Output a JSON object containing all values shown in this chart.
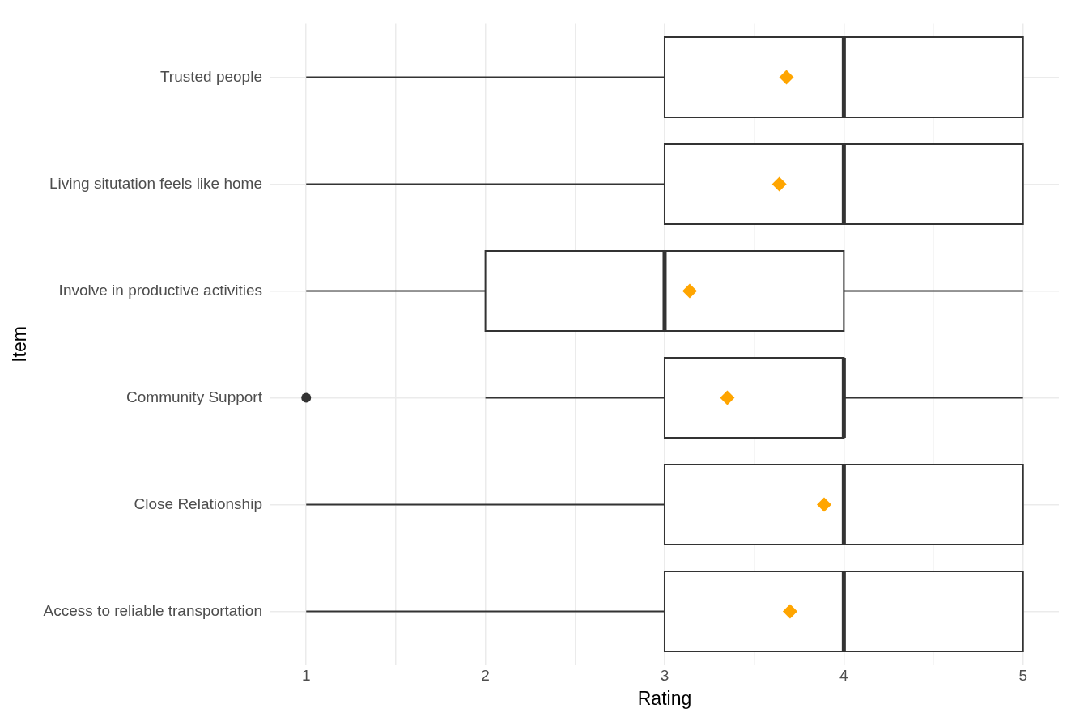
{
  "chart_data": {
    "type": "box",
    "orientation": "horizontal",
    "xlabel": "Rating",
    "ylabel": "Item",
    "categories": [
      "Trusted people",
      "Living situtation feels like home",
      "Involve in productive activities",
      "Community Support",
      "Close Relationship",
      "Access to reliable transportation"
    ],
    "xlim": [
      0.8,
      5.2
    ],
    "xticks": [
      1,
      {
        "value": 1.5,
        "label": null
      },
      2,
      {
        "value": 2.5,
        "label": null
      },
      3,
      {
        "value": 3.5,
        "label": null
      },
      4,
      {
        "value": 4.5,
        "label": null
      },
      5
    ],
    "grid": true,
    "legend": false,
    "series": [
      {
        "type": "box",
        "color": "#333333",
        "boxes": [
          {
            "low": 1,
            "q1": 3,
            "median": 4,
            "q3": 5,
            "high": 5
          },
          {
            "low": 1,
            "q1": 3,
            "median": 4,
            "q3": 5,
            "high": 5
          },
          {
            "low": 1,
            "q1": 2,
            "median": 3,
            "q3": 4,
            "high": 5
          },
          {
            "low": 2,
            "q1": 3,
            "median": 4,
            "q3": 4,
            "high": 5,
            "outliers": [
              1
            ]
          },
          {
            "low": 1,
            "q1": 3,
            "median": 4,
            "q3": 5,
            "high": 5
          },
          {
            "low": 1,
            "q1": 3,
            "median": 4,
            "q3": 5,
            "high": 5
          }
        ]
      },
      {
        "type": "scatter",
        "color": "#ffa500",
        "marker": "diamond",
        "x": [
          "Trusted people",
          "Living situtation feels like home",
          "Involve in productive activities",
          "Community Support",
          "Close Relationship",
          "Access to reliable transportation"
        ],
        "values": [
          3.68,
          3.64,
          3.14,
          3.35,
          3.89,
          3.7
        ]
      }
    ]
  }
}
